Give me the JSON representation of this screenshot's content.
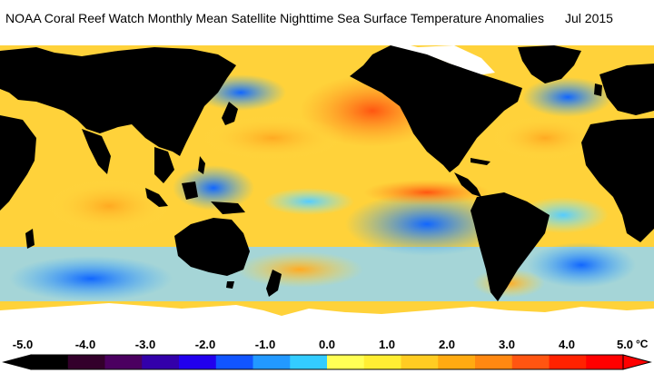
{
  "header": {
    "title": "NOAA Coral Reef Watch Monthly Mean Satellite Nighttime Sea Surface Temperature Anomalies",
    "date": "Jul 2015"
  },
  "colors": {
    "land": "#000000",
    "ice": "#ffffff",
    "ocean_warm": "#ffcc33",
    "ocean_hot": "#ff6633",
    "ocean_neutral": "#66ddff",
    "ocean_cool": "#2288ff"
  },
  "scale": {
    "unit": "°C",
    "ticks": [
      "-5.0",
      "-4.0",
      "-3.0",
      "-2.0",
      "-1.0",
      "0.0",
      "1.0",
      "2.0",
      "3.0",
      "4.0",
      "5.0"
    ],
    "colors": [
      "#000000",
      "#33002b",
      "#4b0060",
      "#3300aa",
      "#2200ee",
      "#1155ff",
      "#2299ff",
      "#33ccff",
      "#ffff55",
      "#ffee33",
      "#ffcc22",
      "#ffaa11",
      "#ff8811",
      "#ff5511",
      "#ff2200",
      "#ff0000"
    ]
  }
}
